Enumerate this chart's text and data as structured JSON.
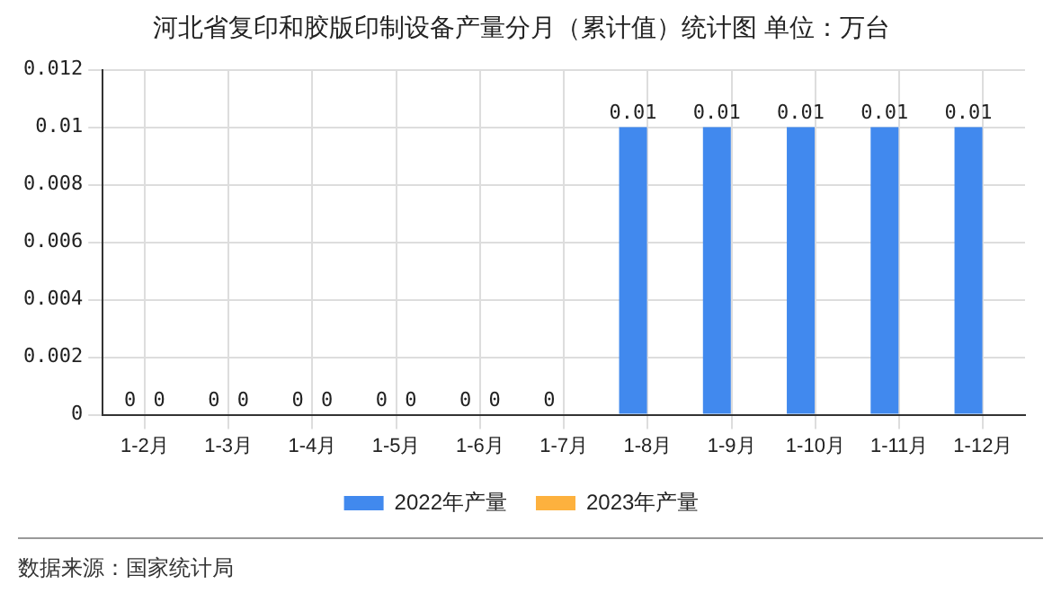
{
  "chart_data": {
    "type": "bar",
    "title": "河北省复印和胶版印制设备产量分月（累计值）统计图 单位：万台",
    "categories": [
      "1-2月",
      "1-3月",
      "1-4月",
      "1-5月",
      "1-6月",
      "1-7月",
      "1-8月",
      "1-9月",
      "1-10月",
      "1-11月",
      "1-12月"
    ],
    "series": [
      {
        "name": "2022年产量",
        "color": "#4189ee",
        "values": [
          0,
          0,
          0,
          0,
          0,
          0,
          0.01,
          0.01,
          0.01,
          0.01,
          0.01
        ]
      },
      {
        "name": "2023年产量",
        "color": "#fdb13e",
        "values": [
          0,
          0,
          0,
          0,
          0,
          null,
          null,
          null,
          null,
          null,
          null
        ]
      }
    ],
    "ylim": [
      0,
      0.012
    ],
    "yticks": [
      0,
      0.002,
      0.004,
      0.006,
      0.008,
      0.01,
      0.012
    ],
    "grid": true,
    "legend": "bottom",
    "data_labels": true,
    "annotations": [
      "数据来源：国家统计局"
    ]
  }
}
